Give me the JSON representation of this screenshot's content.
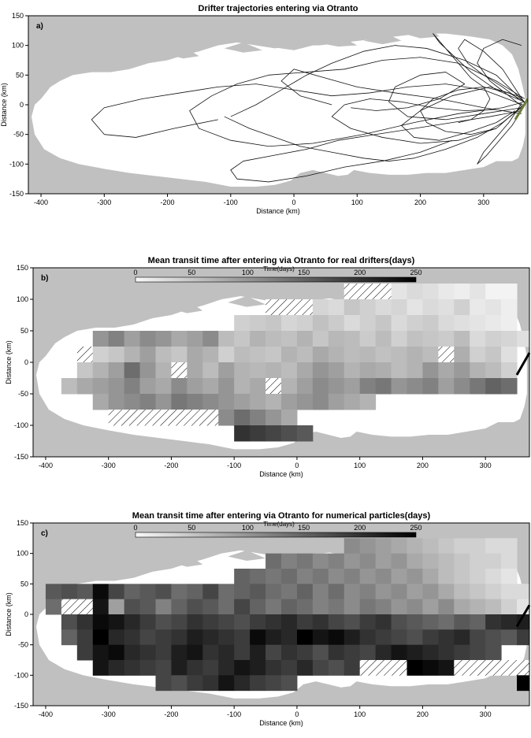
{
  "chart_data": [
    {
      "type": "line",
      "panel_label": "a)",
      "title": "Drifter trajectories entering via Otranto",
      "xlabel": "Distance (km)",
      "ylabel": "Distance (km)",
      "xlim": [
        -420,
        370
      ],
      "ylim": [
        -150,
        150
      ],
      "xticks": [
        -400,
        -300,
        -200,
        -100,
        0,
        100,
        200,
        300
      ],
      "yticks": [
        150,
        100,
        50,
        0,
        -50,
        -100,
        -150
      ],
      "background": "#c0c0c0",
      "sea_color": "#ffffff",
      "trajectory_color": "#111111",
      "series": [
        {
          "x": [
            365,
            320,
            260,
            200,
            140,
            80,
            20,
            -40,
            -90,
            -130,
            -165,
            -150,
            -100,
            -40,
            30,
            110,
            190,
            260,
            330,
            365
          ],
          "y": [
            10,
            40,
            70,
            80,
            75,
            60,
            55,
            50,
            35,
            15,
            -10,
            -40,
            -60,
            -70,
            -65,
            -50,
            -30,
            -15,
            -5,
            5
          ]
        },
        {
          "x": [
            362,
            300,
            240,
            180,
            120,
            60,
            0,
            -60,
            -120,
            -180,
            -240,
            -300,
            -320,
            -300,
            -250,
            -190,
            -120
          ],
          "y": [
            0,
            25,
            35,
            30,
            20,
            15,
            25,
            35,
            30,
            20,
            10,
            -5,
            -25,
            -50,
            -55,
            -40,
            -25
          ]
        },
        {
          "x": [
            360,
            310,
            250,
            190,
            130,
            70,
            20,
            -30,
            -80,
            -100,
            -90,
            -40,
            20,
            80,
            140,
            200,
            250
          ],
          "y": [
            -10,
            -20,
            -30,
            -40,
            -50,
            -60,
            -75,
            -85,
            -95,
            -110,
            -125,
            -130,
            -120,
            -105,
            -95,
            -80,
            -60
          ]
        },
        {
          "x": [
            364,
            320,
            280,
            250,
            230,
            220,
            240,
            260,
            280,
            300,
            310,
            300,
            280,
            260
          ],
          "y": [
            5,
            25,
            55,
            85,
            105,
            120,
            95,
            70,
            45,
            30,
            10,
            -10,
            -25,
            -30
          ]
        },
        {
          "x": [
            360,
            300,
            240,
            180,
            150,
            160,
            200,
            240,
            270,
            230,
            180,
            130,
            90
          ],
          "y": [
            -5,
            -15,
            -25,
            -20,
            5,
            30,
            50,
            55,
            35,
            10,
            -5,
            -10,
            -5
          ]
        },
        {
          "x": [
            363,
            330,
            290,
            240,
            190,
            150,
            110,
            60,
            10,
            -30,
            -70,
            -110
          ],
          "y": [
            -2,
            -30,
            -55,
            -75,
            -90,
            -95,
            -90,
            -80,
            -70,
            -55,
            -40,
            -20
          ]
        },
        {
          "x": [
            361,
            320,
            270,
            210,
            160,
            110,
            60,
            20,
            -20,
            -60,
            -100
          ],
          "y": [
            8,
            50,
            75,
            95,
            100,
            90,
            70,
            50,
            25,
            0,
            -20
          ]
        },
        {
          "x": [
            360,
            340,
            320,
            300,
            290,
            305,
            325,
            345,
            360
          ],
          "y": [
            2,
            -30,
            -55,
            -80,
            -100,
            -85,
            -60,
            -35,
            -10
          ]
        },
        {
          "x": [
            362,
            310,
            250,
            200,
            170,
            190,
            230,
            280,
            320,
            350
          ],
          "y": [
            12,
            30,
            15,
            -10,
            -35,
            -55,
            -60,
            -45,
            -30,
            -10
          ]
        },
        {
          "x": [
            365,
            330,
            300,
            270,
            260,
            275,
            300,
            330,
            355
          ],
          "y": [
            3,
            60,
            90,
            110,
            95,
            70,
            50,
            30,
            10
          ]
        },
        {
          "x": [
            360,
            300,
            230,
            160,
            100,
            50,
            0,
            -20,
            10,
            60
          ],
          "y": [
            -15,
            -5,
            10,
            20,
            30,
            45,
            60,
            40,
            15,
            0
          ]
        },
        {
          "x": [
            363,
            320,
            260,
            200,
            140,
            90,
            60,
            80,
            120,
            170,
            220,
            270,
            320
          ],
          "y": [
            0,
            -40,
            -60,
            -65,
            -55,
            -40,
            -20,
            0,
            10,
            5,
            -5,
            -10,
            -8
          ]
        },
        {
          "x": [
            364,
            340,
            300,
            260,
            220,
            200,
            210,
            240,
            280,
            320
          ],
          "y": [
            6,
            20,
            30,
            25,
            10,
            -10,
            -30,
            -45,
            -50,
            -40
          ]
        },
        {
          "x": [
            361,
            340,
            310,
            290,
            300,
            330,
            360
          ],
          "y": [
            -3,
            15,
            40,
            70,
            95,
            110,
            100
          ]
        }
      ]
    },
    {
      "type": "heatmap",
      "panel_label": "b)",
      "title": "Mean transit time after entering via Otranto for real drifters(days)",
      "xlabel": "Distance (km)",
      "ylabel": "Distance (km)",
      "colorbar_label": "Time(days)",
      "colorbar_ticks": [
        0,
        50,
        100,
        150,
        200,
        250
      ],
      "colorbar_range": [
        0,
        250
      ],
      "colormap": "white-to-black",
      "xlim": [
        -420,
        370
      ],
      "ylim": [
        -150,
        150
      ],
      "xticks": [
        -400,
        -300,
        -200,
        -100,
        0,
        100,
        200,
        300
      ],
      "yticks": [
        150,
        100,
        50,
        0,
        -50,
        -100,
        -150
      ],
      "cell_size_km": 25,
      "hatched": "no data",
      "rows": [
        {
          "y": 100,
          "x0": 75,
          "values": [
            null,
            null,
            null,
            20,
            30,
            25,
            15,
            10,
            20,
            5,
            5
          ]
        },
        {
          "y": 75,
          "x0": -50,
          "values": [
            null,
            null,
            null,
            35,
            30,
            50,
            40,
            30,
            35,
            20,
            30,
            25,
            40,
            15,
            20,
            10
          ]
        },
        {
          "y": 50,
          "x0": -100,
          "values": [
            40,
            45,
            50,
            35,
            40,
            55,
            45,
            30,
            40,
            50,
            30,
            40,
            45,
            30,
            25,
            20,
            15,
            10
          ]
        },
        {
          "y": 25,
          "x0": -325,
          "values": [
            100,
            120,
            90,
            110,
            100,
            80,
            90,
            110,
            60,
            50,
            70,
            60,
            55,
            70,
            50,
            65,
            60,
            45,
            60,
            40,
            55,
            50,
            45,
            60,
            30,
            40,
            35,
            25
          ]
        },
        {
          "y": 0,
          "x0": -350,
          "values": [
            null,
            40,
            50,
            70,
            90,
            60,
            50,
            80,
            70,
            40,
            60,
            55,
            50,
            70,
            60,
            80,
            70,
            60,
            65,
            55,
            60,
            70,
            60,
            null,
            75,
            40,
            50,
            25
          ]
        },
        {
          "y": -25,
          "x0": -350,
          "values": [
            50,
            70,
            90,
            140,
            100,
            70,
            null,
            80,
            60,
            90,
            70,
            65,
            70,
            60,
            80,
            100,
            90,
            70,
            80,
            75,
            60,
            70,
            100,
            80,
            95,
            70,
            60,
            40
          ]
        },
        {
          "y": -50,
          "x0": -375,
          "values": [
            60,
            80,
            90,
            100,
            120,
            90,
            80,
            110,
            90,
            80,
            100,
            70,
            80,
            null,
            70,
            90,
            110,
            100,
            90,
            120,
            130,
            100,
            110,
            120,
            90,
            110,
            130,
            150,
            140
          ]
        },
        {
          "y": -75,
          "x0": -325,
          "values": [
            80,
            100,
            110,
            120,
            100,
            130,
            120,
            110,
            100,
            90,
            80,
            70,
            90,
            100,
            110,
            90,
            80,
            70
          ]
        },
        {
          "y": -100,
          "x0": -300,
          "values": [
            null,
            null,
            null,
            null,
            null,
            null,
            null,
            110,
            140,
            120,
            100,
            80
          ]
        },
        {
          "y": -125,
          "x0": -100,
          "values": [
            200,
            190,
            180,
            170,
            160
          ]
        }
      ]
    },
    {
      "type": "heatmap",
      "panel_label": "c)",
      "title": "Mean transit time after entering via Otranto for numerical particles(days)",
      "xlabel": "Distance (km)",
      "ylabel": "Distance (km)",
      "colorbar_label": "Time(days)",
      "colorbar_ticks": [
        0,
        50,
        100,
        150,
        200,
        250
      ],
      "colorbar_range": [
        0,
        250
      ],
      "colormap": "white-to-black",
      "xlim": [
        -420,
        370
      ],
      "ylim": [
        -150,
        150
      ],
      "xticks": [
        -400,
        -300,
        -200,
        -100,
        0,
        100,
        200,
        300
      ],
      "yticks": [
        150,
        100,
        50,
        0,
        -50,
        -100,
        -150
      ],
      "cell_size_km": 25,
      "hatched": "no data",
      "rows": [
        {
          "y": 100,
          "x0": 75,
          "values": [
            110,
            100,
            90,
            80,
            70,
            60,
            50,
            40,
            40,
            30,
            30
          ]
        },
        {
          "y": 75,
          "x0": -50,
          "values": [
            140,
            120,
            130,
            110,
            120,
            100,
            110,
            90,
            100,
            80,
            70,
            60,
            50,
            40,
            40,
            30
          ]
        },
        {
          "y": 50,
          "x0": -100,
          "values": [
            150,
            140,
            130,
            140,
            120,
            130,
            110,
            120,
            100,
            110,
            90,
            100,
            80,
            60,
            50,
            40,
            30,
            20
          ]
        },
        {
          "y": 25,
          "x0": -400,
          "values": [
            160,
            170,
            160,
            240,
            180,
            150,
            160,
            170,
            140,
            150,
            180,
            140,
            150,
            160,
            140,
            130,
            150,
            120,
            140,
            110,
            120,
            100,
            110,
            90,
            100,
            80,
            60,
            50,
            40,
            30,
            30
          ]
        },
        {
          "y": 0,
          "x0": -400,
          "values": [
            140,
            null,
            null,
            230,
            90,
            170,
            160,
            120,
            150,
            170,
            160,
            140,
            180,
            150,
            130,
            150,
            140,
            120,
            130,
            110,
            130,
            120,
            100,
            110,
            90,
            110,
            80,
            70,
            60,
            40,
            20
          ]
        },
        {
          "y": -25,
          "x0": -375,
          "values": [
            170,
            200,
            240,
            230,
            210,
            190,
            170,
            180,
            200,
            190,
            180,
            170,
            190,
            200,
            210,
            190,
            200,
            180,
            170,
            190,
            200,
            170,
            160,
            150,
            140,
            160,
            150,
            200,
            210,
            220
          ]
        },
        {
          "y": -50,
          "x0": -375,
          "values": [
            150,
            190,
            250,
            210,
            200,
            180,
            190,
            200,
            220,
            210,
            200,
            190,
            240,
            220,
            210,
            250,
            230,
            240,
            220,
            200,
            190,
            180,
            170,
            190,
            200,
            210,
            180,
            170,
            160,
            190
          ]
        },
        {
          "y": -75,
          "x0": -350,
          "values": [
            190,
            230,
            240,
            210,
            200,
            190,
            220,
            230,
            200,
            210,
            190,
            220,
            180,
            200,
            190,
            170,
            200,
            190,
            180,
            210,
            230,
            220,
            210,
            200,
            190,
            180,
            170
          ]
        },
        {
          "y": -100,
          "x0": -325,
          "values": [
            230,
            210,
            200,
            190,
            180,
            220,
            200,
            190,
            210,
            230,
            220,
            200,
            190,
            210,
            180,
            170,
            190,
            null,
            null,
            null,
            250,
            240,
            230,
            null,
            null,
            null,
            null,
            null,
            250
          ]
        },
        {
          "y": -125,
          "x0": -225,
          "values": [
            180,
            170,
            190,
            200,
            230,
            210,
            190,
            180,
            170
          ]
        },
        {
          "y": -125,
          "x0": 350,
          "values": [
            250
          ]
        }
      ]
    }
  ]
}
